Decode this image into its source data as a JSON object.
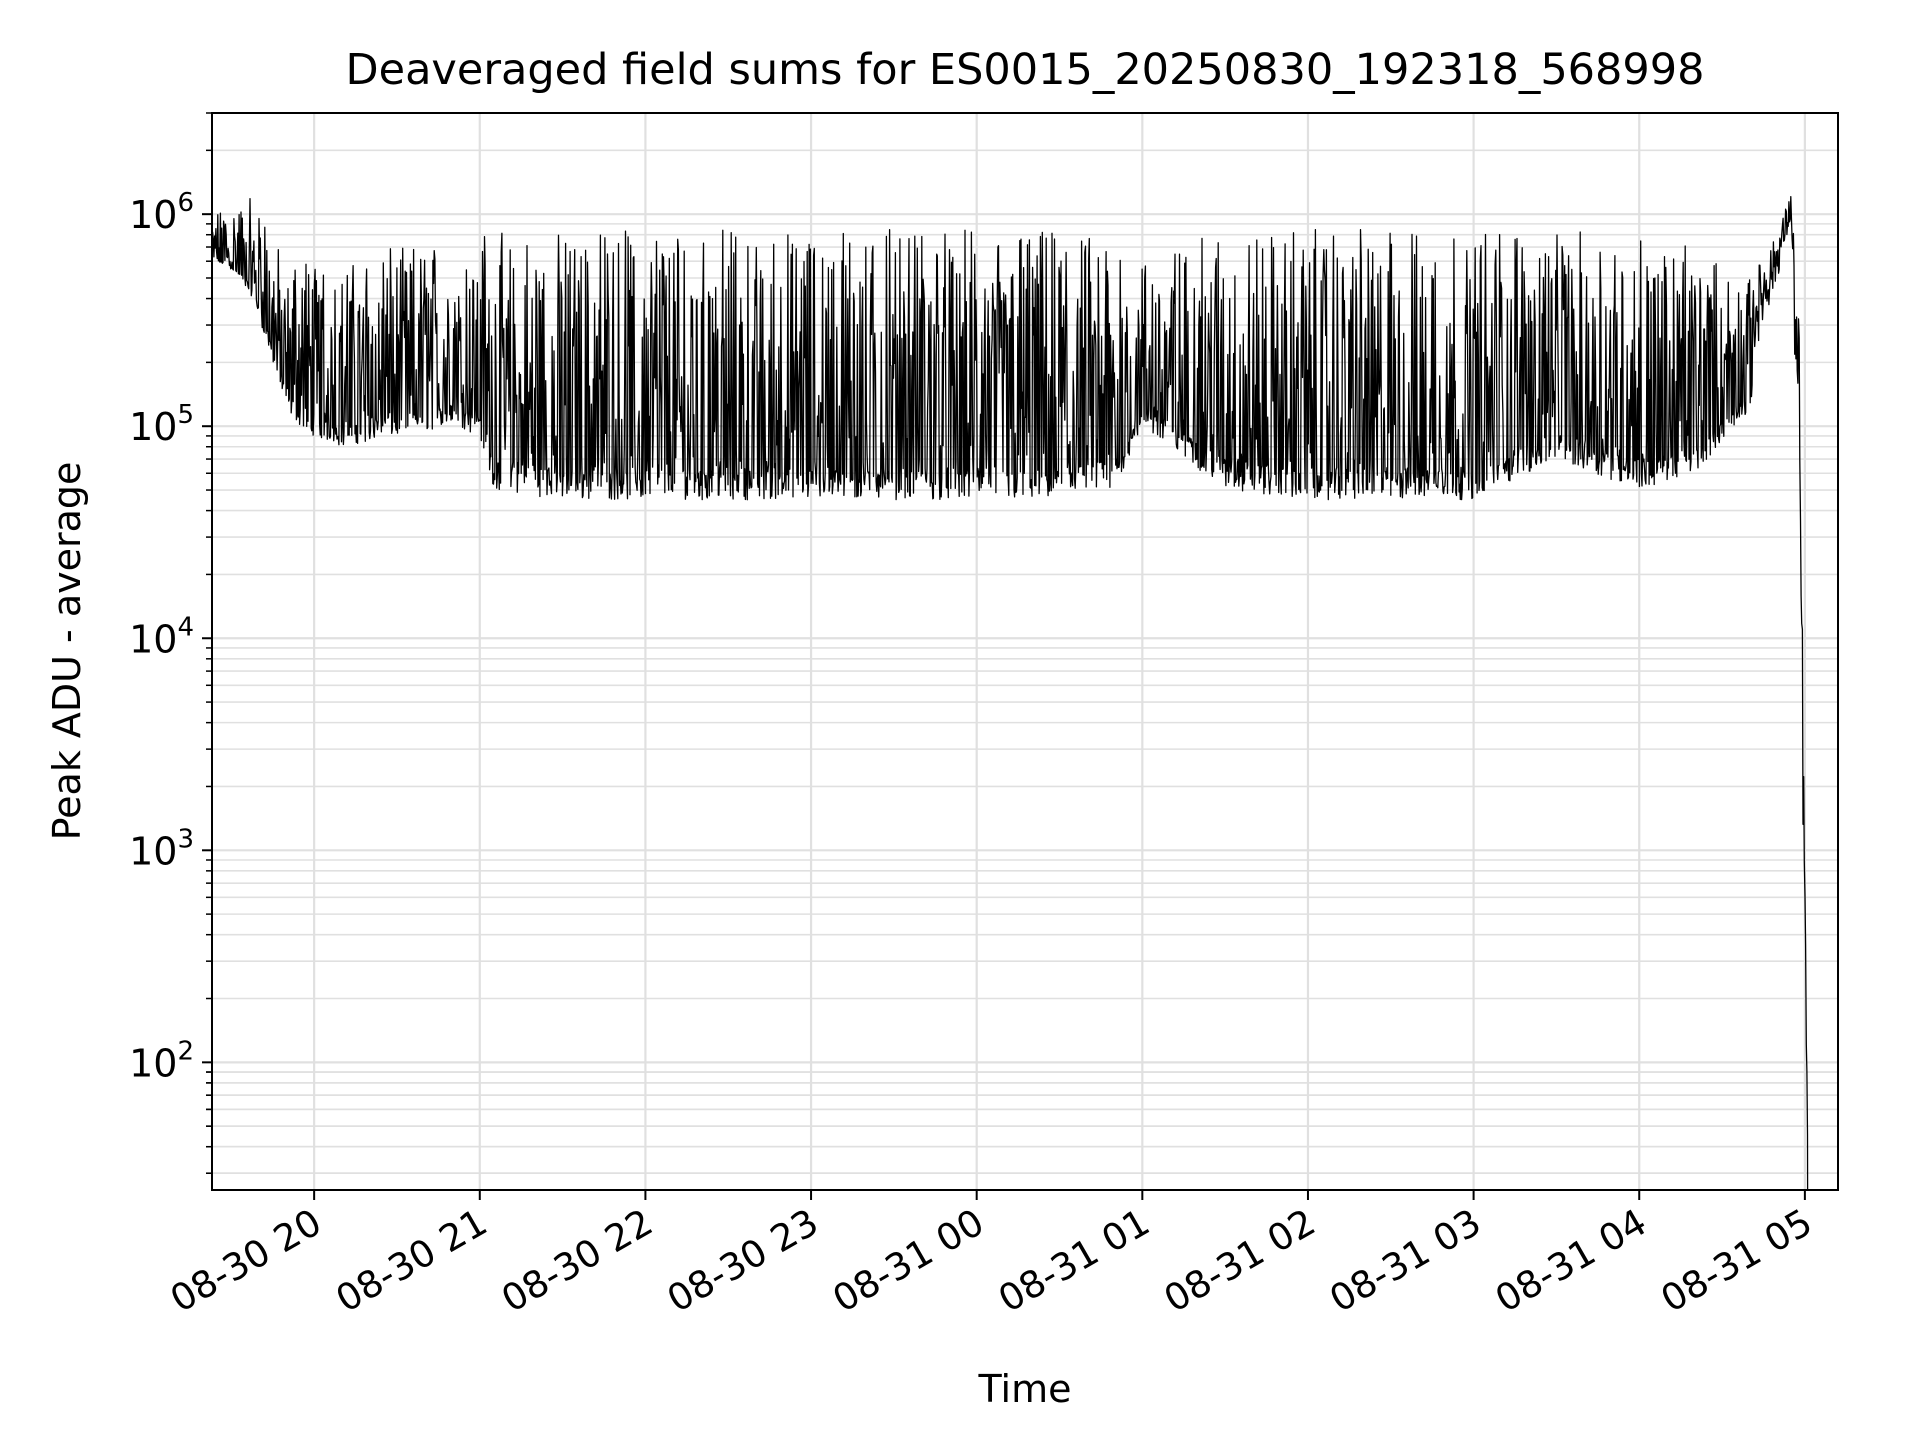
{
  "chart_data": {
    "type": "line",
    "title": "Deaveraged field sums for ES0015_20250830_192318_568998",
    "xlabel": "Time",
    "ylabel": "Peak ADU - average",
    "yscale": "log",
    "xlim": [
      "2025-08-30 19:23",
      "2025-08-31 05:12"
    ],
    "ylim": [
      25,
      3000000
    ],
    "grid": "major and minor",
    "x_ticks": [
      "08-30 20",
      "08-30 21",
      "08-30 22",
      "08-30 23",
      "08-31 00",
      "08-31 01",
      "08-31 02",
      "08-31 03",
      "08-31 04",
      "08-31 05"
    ],
    "y_ticks": [
      {
        "base": "10",
        "exp": "2",
        "value": 100
      },
      {
        "base": "10",
        "exp": "3",
        "value": 1000
      },
      {
        "base": "10",
        "exp": "4",
        "value": 10000
      },
      {
        "base": "10",
        "exp": "5",
        "value": 100000
      },
      {
        "base": "10",
        "exp": "6",
        "value": 1000000
      }
    ],
    "line_color": "#000000",
    "grid_color": "#e0e0e0",
    "series": [
      {
        "name": "",
        "x": [
          "2025-08-30 19:23",
          "2025-08-30 19:30",
          "2025-08-30 19:38",
          "2025-08-30 19:45",
          "2025-08-30 19:50",
          "2025-08-30 19:55",
          "2025-08-30 20:00",
          "2025-08-30 20:10",
          "2025-08-30 20:20",
          "2025-08-30 20:30",
          "2025-08-30 20:40",
          "2025-08-30 20:50",
          "2025-08-30 20:55",
          "2025-08-30 21:00",
          "2025-08-30 21:05",
          "2025-08-30 21:30",
          "2025-08-30 22:00",
          "2025-08-30 22:30",
          "2025-08-30 23:00",
          "2025-08-30 23:30",
          "2025-08-31 00:00",
          "2025-08-31 00:30",
          "2025-08-31 00:50",
          "2025-08-31 01:00",
          "2025-08-31 01:30",
          "2025-08-31 02:00",
          "2025-08-31 02:30",
          "2025-08-31 03:00",
          "2025-08-31 03:30",
          "2025-08-31 04:00",
          "2025-08-31 04:20",
          "2025-08-31 04:40",
          "2025-08-31 04:50",
          "2025-08-31 04:55",
          "2025-08-31 04:58",
          "2025-08-31 05:00",
          "2025-08-31 05:01"
        ],
        "low": [
          600000,
          550000,
          400000,
          200000,
          120000,
          100000,
          90000,
          80000,
          85000,
          90000,
          95000,
          100000,
          95000,
          90000,
          50000,
          45000,
          45000,
          45000,
          45000,
          45000,
          45000,
          45000,
          50000,
          100000,
          50000,
          45000,
          45000,
          45000,
          70000,
          50000,
          60000,
          120000,
          400000,
          800000,
          10000,
          150,
          25
        ],
        "high": [
          1000000,
          1100000,
          1200000,
          900000,
          500000,
          700000,
          650000,
          550000,
          650000,
          700000,
          750000,
          800000,
          850000,
          800000,
          850000,
          850000,
          850000,
          850000,
          850000,
          850000,
          850000,
          850000,
          800000,
          600000,
          850000,
          850000,
          850000,
          850000,
          850000,
          800000,
          700000,
          500000,
          800000,
          1300000,
          300000,
          900,
          60
        ]
      }
    ]
  }
}
